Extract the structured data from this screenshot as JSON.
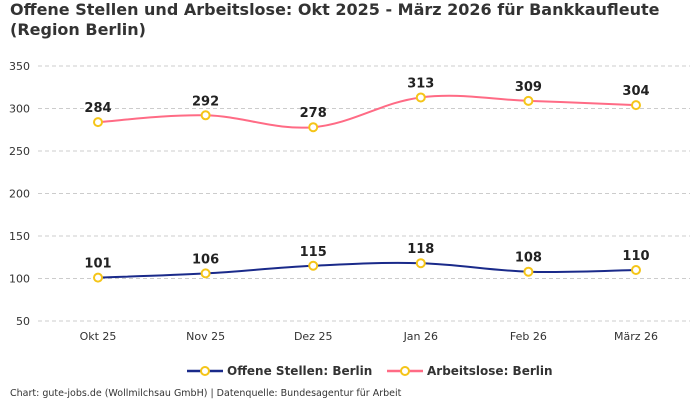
{
  "chart_data": {
    "type": "line",
    "title": "Offene Stellen und Arbeitslose: Okt 2025 - März 2026 für Bankkaufleute (Region Berlin)",
    "categories": [
      "Okt 25",
      "Nov 25",
      "Dez 25",
      "Jan 26",
      "Feb 26",
      "März 26"
    ],
    "series": [
      {
        "name": "Offene Stellen: Berlin",
        "color": "#1a2a8a",
        "values": [
          101,
          106,
          115,
          118,
          108,
          110
        ]
      },
      {
        "name": "Arbeitslose: Berlin",
        "color": "#ff6b85",
        "values": [
          284,
          292,
          278,
          313,
          309,
          304
        ]
      }
    ],
    "ylim": [
      50,
      350
    ],
    "yticks": [
      50,
      100,
      150,
      200,
      250,
      300,
      350
    ],
    "grid": true,
    "legend": "bottom",
    "marker_color": "#f5c518",
    "xlabel": "",
    "ylabel": ""
  },
  "credit": "Chart: gute-jobs.de (Wollmilchsau GmbH) | Datenquelle: Bundesagentur für Arbeit"
}
